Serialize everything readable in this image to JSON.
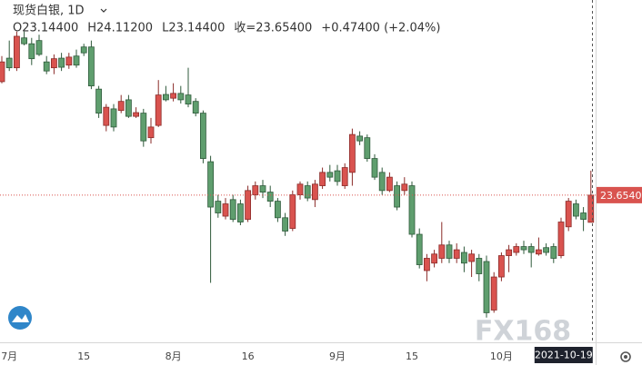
{
  "chart_data": {
    "type": "candlestick",
    "title": "现货白银, 1D",
    "header": [
      "O23.14400",
      "H24.11200",
      "L23.14400",
      "收=23.65400",
      "+0.47400 (+2.04%)"
    ],
    "watermark": "FX168",
    "last_price_label": "23.65400",
    "up_color": "#d9534f",
    "down_color": "#5f9e6e",
    "ylim": [
      20.93,
      27.31
    ],
    "categories": [
      null,
      "7月",
      null,
      null,
      null,
      null,
      null,
      null,
      null,
      null,
      null,
      "15",
      null,
      null,
      null,
      null,
      null,
      null,
      null,
      null,
      null,
      null,
      null,
      "8月",
      null,
      null,
      null,
      null,
      null,
      null,
      null,
      null,
      null,
      "16",
      null,
      null,
      null,
      null,
      null,
      null,
      null,
      null,
      null,
      null,
      null,
      "9月",
      null,
      null,
      null,
      null,
      null,
      null,
      null,
      null,
      null,
      "15",
      null,
      null,
      null,
      null,
      null,
      null,
      null,
      null,
      null,
      null,
      null,
      "10月",
      null,
      null,
      null,
      null,
      null,
      null,
      null,
      null,
      null,
      null,
      null,
      "2021-10-19"
    ],
    "open": [
      25.78,
      26.22,
      26.04,
      26.6,
      26.49,
      26.55,
      26.15,
      26.04,
      26.22,
      26.09,
      26.26,
      26.43,
      26.43,
      25.64,
      24.96,
      25.27,
      25.24,
      25.44,
      25.13,
      25.19,
      24.73,
      24.96,
      25.54,
      25.47,
      25.56,
      25.53,
      25.41,
      25.19,
      24.28,
      23.54,
      23.26,
      23.57,
      23.49,
      23.2,
      23.66,
      23.83,
      23.71,
      23.54,
      23.23,
      23.03,
      23.66,
      23.83,
      23.57,
      23.83,
      24.08,
      24.11,
      23.83,
      24.08,
      24.76,
      24.73,
      24.34,
      24.08,
      23.74,
      23.83,
      23.74,
      23.83,
      22.92,
      22.24,
      22.38,
      22.47,
      22.72,
      22.47,
      22.58,
      22.41,
      22.47,
      22.41,
      21.5,
      22.12,
      22.52,
      22.58,
      22.69,
      22.69,
      22.55,
      22.67,
      22.69,
      22.52,
      23.06,
      23.49,
      23.32,
      23.144
    ],
    "high": [
      26.26,
      26.55,
      26.72,
      26.72,
      26.6,
      26.66,
      26.26,
      26.29,
      26.32,
      26.32,
      26.38,
      26.49,
      26.55,
      25.7,
      25.36,
      25.36,
      25.53,
      25.53,
      25.3,
      25.27,
      25.1,
      25.81,
      25.7,
      25.75,
      25.7,
      26.04,
      25.47,
      25.24,
      24.39,
      23.66,
      23.6,
      23.66,
      23.57,
      23.83,
      23.91,
      23.94,
      23.83,
      23.6,
      23.32,
      23.74,
      23.91,
      23.91,
      23.94,
      24.17,
      24.22,
      24.22,
      24.25,
      24.9,
      24.85,
      24.79,
      24.42,
      24.17,
      24.08,
      23.91,
      23.99,
      23.91,
      23.03,
      22.55,
      22.63,
      23.15,
      22.8,
      22.75,
      22.69,
      22.63,
      22.55,
      22.52,
      22.21,
      22.58,
      22.72,
      22.75,
      22.8,
      22.75,
      22.86,
      22.75,
      22.75,
      23.23,
      23.6,
      23.57,
      23.43,
      24.112
    ],
    "low": [
      25.75,
      25.98,
      25.98,
      26.46,
      26.09,
      26.26,
      25.92,
      25.92,
      25.98,
      26.02,
      26.04,
      26.26,
      25.64,
      25.1,
      24.85,
      24.85,
      25.19,
      25.1,
      25.1,
      24.56,
      24.62,
      24.93,
      25.41,
      25.41,
      25.37,
      25.3,
      25.13,
      24.25,
      22.01,
      23.23,
      23.2,
      23.15,
      23.09,
      23.15,
      23.57,
      23.6,
      23.43,
      23.15,
      22.89,
      22.98,
      23.57,
      23.54,
      23.43,
      23.77,
      23.91,
      23.83,
      23.77,
      23.83,
      24.59,
      24.28,
      23.94,
      23.66,
      23.71,
      23.37,
      23.66,
      22.86,
      22.28,
      22.04,
      22.3,
      22.38,
      22.38,
      22.38,
      22.21,
      22.12,
      22.04,
      21.36,
      21.45,
      22.04,
      22.21,
      22.52,
      22.55,
      22.3,
      22.52,
      22.52,
      22.38,
      22.47,
      22.98,
      23.2,
      22.98,
      23.144
    ],
    "close": [
      26.15,
      26.04,
      26.63,
      26.49,
      26.21,
      26.29,
      25.98,
      26.21,
      26.05,
      26.24,
      26.09,
      26.32,
      25.7,
      25.19,
      25.3,
      24.93,
      25.41,
      25.13,
      25.2,
      24.67,
      24.93,
      25.53,
      25.44,
      25.56,
      25.44,
      25.36,
      25.19,
      24.34,
      23.43,
      23.32,
      23.49,
      23.2,
      23.15,
      23.74,
      23.83,
      23.71,
      23.54,
      23.23,
      22.98,
      23.66,
      23.86,
      23.6,
      23.86,
      24.08,
      23.99,
      23.91,
      24.17,
      24.79,
      24.67,
      24.34,
      23.99,
      23.74,
      23.99,
      23.43,
      23.86,
      22.92,
      22.35,
      22.47,
      22.55,
      22.72,
      22.47,
      22.63,
      22.38,
      22.55,
      22.18,
      21.45,
      22.12,
      22.52,
      22.63,
      22.69,
      22.63,
      22.58,
      22.63,
      22.58,
      22.47,
      23.15,
      23.54,
      23.26,
      23.2,
      23.654
    ]
  }
}
